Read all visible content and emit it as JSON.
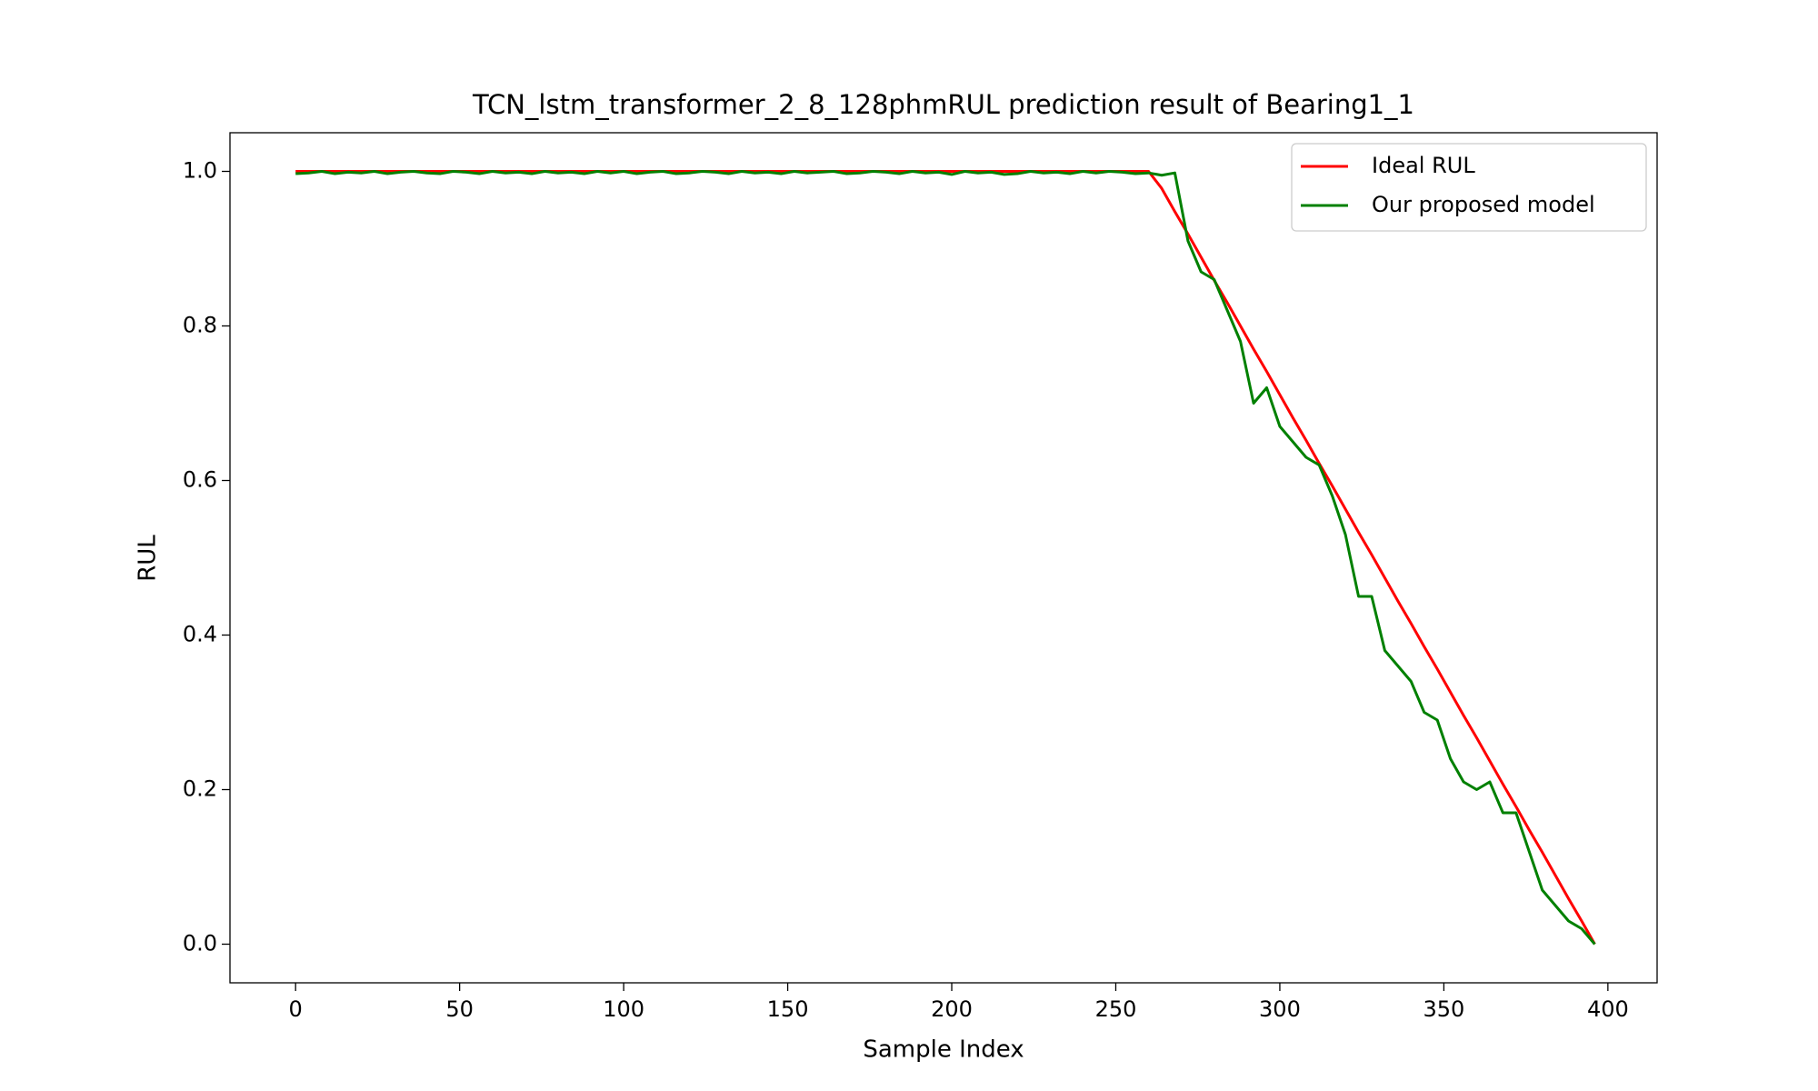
{
  "chart_data": {
    "type": "line",
    "title": "TCN_lstm_transformer_2_8_128phmRUL prediction result of Bearing1_1",
    "x_label": "Sample Index",
    "y_label": "RUL",
    "x": [
      0,
      4,
      8,
      12,
      16,
      20,
      24,
      28,
      32,
      36,
      40,
      44,
      48,
      52,
      56,
      60,
      64,
      68,
      72,
      76,
      80,
      84,
      88,
      92,
      96,
      100,
      104,
      108,
      112,
      116,
      120,
      124,
      128,
      132,
      136,
      140,
      144,
      148,
      152,
      156,
      160,
      164,
      168,
      172,
      176,
      180,
      184,
      188,
      192,
      196,
      200,
      204,
      208,
      212,
      216,
      220,
      224,
      228,
      232,
      236,
      240,
      244,
      248,
      252,
      256,
      260,
      264,
      268,
      272,
      276,
      280,
      284,
      288,
      292,
      296,
      300,
      304,
      308,
      312,
      316,
      320,
      324,
      328,
      332,
      336,
      340,
      344,
      348,
      352,
      356,
      360,
      364,
      368,
      372,
      376,
      380,
      384,
      388,
      392,
      396
    ],
    "series": [
      {
        "name": "Ideal RUL",
        "color": "#ff0000",
        "values": [
          1,
          1,
          1,
          1,
          1,
          1,
          1,
          1,
          1,
          1,
          1,
          1,
          1,
          1,
          1,
          1,
          1,
          1,
          1,
          1,
          1,
          1,
          1,
          1,
          1,
          1,
          1,
          1,
          1,
          1,
          1,
          1,
          1,
          1,
          1,
          1,
          1,
          1,
          1,
          1,
          1,
          1,
          1,
          1,
          1,
          1,
          1,
          1,
          1,
          1,
          1,
          1,
          1,
          1,
          1,
          1,
          1,
          1,
          1,
          1,
          1,
          1,
          1,
          1,
          1,
          1,
          0.978,
          0.948,
          0.919,
          0.889,
          0.859,
          0.83,
          0.8,
          0.77,
          0.741,
          0.711,
          0.681,
          0.652,
          0.622,
          0.593,
          0.563,
          0.533,
          0.504,
          0.474,
          0.444,
          0.415,
          0.385,
          0.356,
          0.326,
          0.296,
          0.267,
          0.237,
          0.207,
          0.178,
          0.148,
          0.119,
          0.089,
          0.059,
          0.03,
          0
        ]
      },
      {
        "name": "Our proposed model",
        "color": "#008000",
        "values": [
          0.997,
          0.998,
          1,
          0.997,
          0.999,
          0.998,
          1,
          0.997,
          0.999,
          1,
          0.998,
          0.997,
          1,
          0.999,
          0.997,
          1,
          0.998,
          0.999,
          0.997,
          1,
          0.998,
          0.999,
          0.997,
          1,
          0.998,
          1,
          0.997,
          0.999,
          1,
          0.997,
          0.998,
          1,
          0.999,
          0.997,
          1,
          0.998,
          0.999,
          0.997,
          1,
          0.998,
          0.999,
          1,
          0.997,
          0.998,
          1,
          0.999,
          0.997,
          1,
          0.998,
          0.999,
          0.996,
          1,
          0.998,
          0.999,
          0.996,
          0.997,
          1,
          0.998,
          0.999,
          0.997,
          1,
          0.998,
          1,
          0.999,
          0.997,
          0.998,
          0.995,
          0.998,
          0.91,
          0.87,
          0.86,
          0.82,
          0.78,
          0.7,
          0.72,
          0.67,
          0.65,
          0.63,
          0.62,
          0.58,
          0.53,
          0.45,
          0.45,
          0.38,
          0.36,
          0.34,
          0.3,
          0.29,
          0.24,
          0.21,
          0.2,
          0.21,
          0.17,
          0.17,
          0.12,
          0.07,
          0.05,
          0.03,
          0.02,
          0
        ]
      }
    ],
    "xlim": [
      -20,
      415
    ],
    "xticks": [
      0,
      50,
      100,
      150,
      200,
      250,
      300,
      350,
      400
    ],
    "ylim": [
      -0.05,
      1.05
    ],
    "yticks": [
      {
        "value": 0,
        "label": "0.0"
      },
      0.2,
      0.4,
      0.6,
      0.8,
      {
        "value": 1,
        "label": "1.0"
      }
    ],
    "legend": "upper right",
    "grid": false
  }
}
